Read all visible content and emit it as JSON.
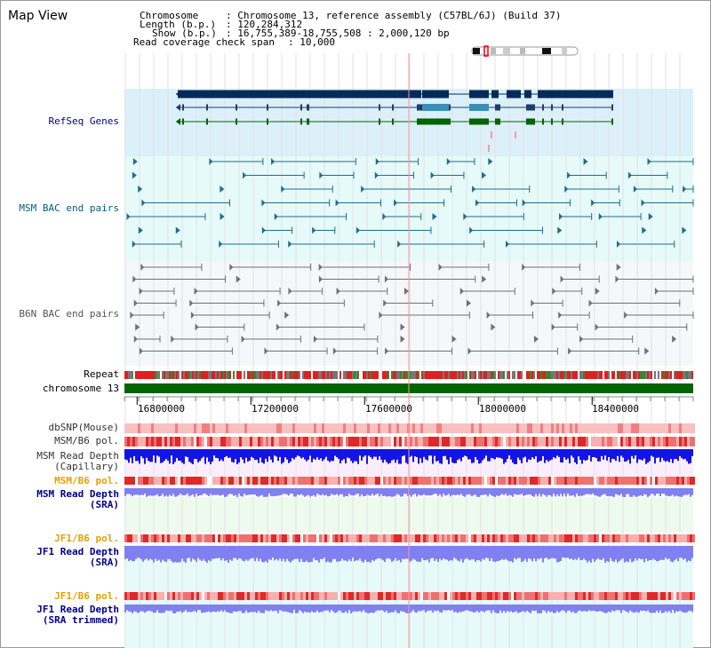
{
  "page": {
    "title": "Map View"
  },
  "header": {
    "chromosome_label": "Chromosome",
    "chromosome_value": ": Chromosome 13, reference assembly (C57BL/6J) (Build 37)",
    "length_label": "Length (b.p.)",
    "length_value": ": 120,284,312",
    "show_label": "Show (b.p.)",
    "show_value": ": 16,755,389-18,755,508 : 2,000,120 bp",
    "coverage_label": "Read coverage check span",
    "coverage_value": ": 10,000"
  },
  "tracks": {
    "refseq": "RefSeq Genes",
    "msm_bac": "MSM BAC end pairs",
    "b6n_bac": "B6N BAC end pairs",
    "repeat": "Repeat",
    "chromosome": "chromosome 13",
    "dbsnp": "dbSNP(Mouse)",
    "msm_pol": "MSM/B6 pol.",
    "msm_depth_cap_1": "MSM Read Depth",
    "msm_depth_cap_2": "(Capillary)",
    "msm_pol_2": "MSM/B6 pol.",
    "msm_depth_sra_1": "MSM Read Depth",
    "msm_depth_sra_2": "(SRA)",
    "jf1_pol_1": "JF1/B6 pol.",
    "jf1_depth_1": "JF1 Read Depth",
    "jf1_depth_2": "(SRA)",
    "jf1_pol_2": "JF1/B6 pol.",
    "jf1_depth_trim_1": "JF1 Read Depth",
    "jf1_depth_trim_2": "(SRA trimmed)"
  },
  "axis": {
    "ticks": [
      "16800000",
      "17200000",
      "17600000",
      "18000000",
      "18400000"
    ],
    "tick_values": [
      16800000,
      17200000,
      17600000,
      18000000,
      18400000
    ],
    "range": [
      16755389,
      18755508
    ]
  },
  "colors": {
    "refseq_bg": "#dcf0fa",
    "bac_bg": "#e6fafa",
    "gene_dark": "#002b5b",
    "gene_mid": "#3a8fb7",
    "gene_green": "#006400",
    "msm_bac": "#1f6e8c",
    "b6n_bac": "#707070",
    "chromosome": "#006400",
    "depth_blue": "#1414e6",
    "depth_sra": "#8080f0",
    "pol_red": "#e83030",
    "label_blue": "#00008b",
    "label_teal": "#005f7f",
    "label_orange": "#e6a000",
    "highlight": "#ff9999"
  }
}
